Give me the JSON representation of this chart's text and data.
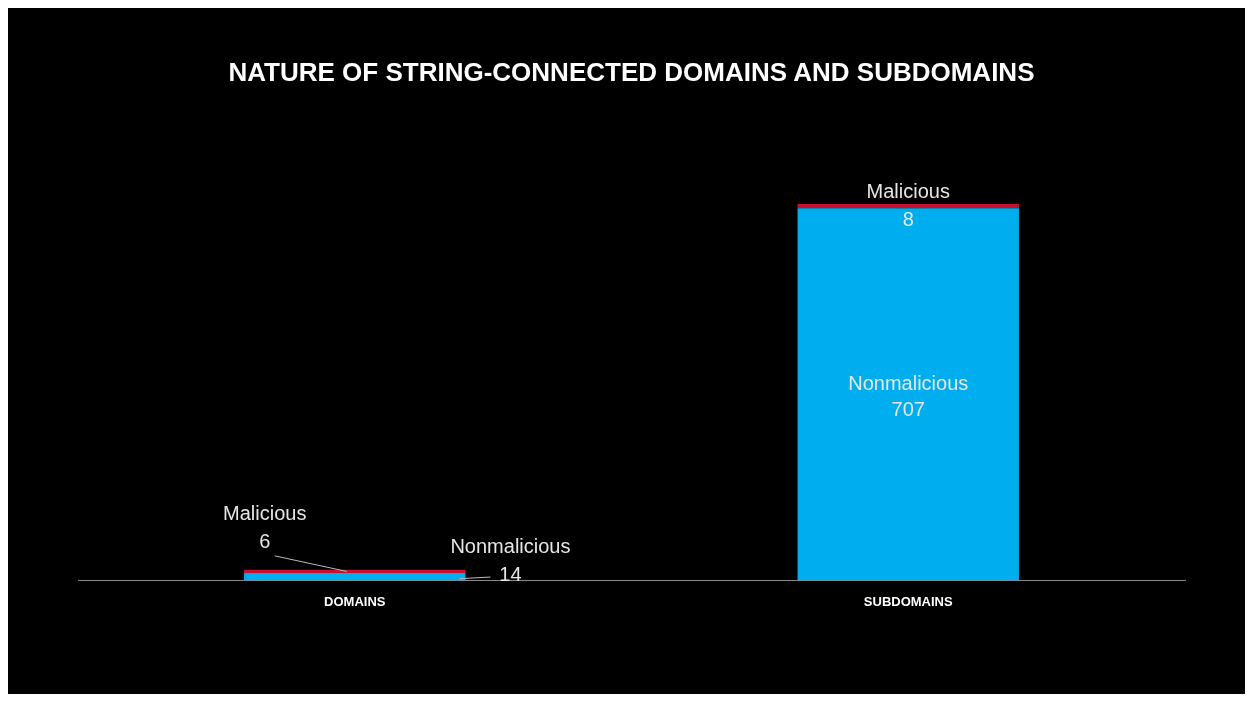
{
  "chart_data": {
    "type": "bar",
    "title": "NATURE OF STRING-CONNECTED DOMAINS AND SUBDOMAINS",
    "categories": [
      "DOMAINS",
      "SUBDOMAINS"
    ],
    "stacked": true,
    "data_labels": true,
    "legend": false,
    "series": [
      {
        "name": "Nonmalicious",
        "color": "#00aeef",
        "values": [
          14,
          707
        ]
      },
      {
        "name": "Malicious",
        "color": "#c8102e",
        "values": [
          6,
          8
        ]
      }
    ]
  }
}
